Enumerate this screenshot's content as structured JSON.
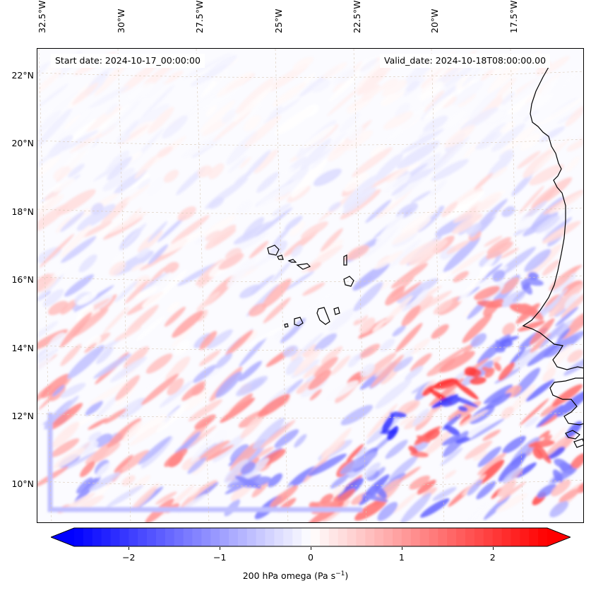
{
  "map": {
    "longitude_labels": [
      "32.5°W",
      "30°W",
      "27.5°W",
      "25°W",
      "22.5°W",
      "20°W",
      "17.5°W"
    ],
    "latitude_labels": [
      "22°N",
      "20°N",
      "18°N",
      "16°N",
      "14°N",
      "12°N",
      "10°N"
    ],
    "start_date_text": "Start date: 2024-10-17_00:00:00",
    "valid_date_text": "Valid_date: 2024-10-18T08:00:00.00",
    "field": "200 hPa omega",
    "colormap": "bwr",
    "colors": {
      "negative": "#0000ff",
      "zero": "#ffffff",
      "positive": "#ff0000",
      "coastline": "#000000",
      "gridlines": "#d9c9b8"
    }
  },
  "colorbar": {
    "ticks": [
      "−2",
      "−1",
      "0",
      "1",
      "2"
    ],
    "tick_values": [
      -2,
      -1,
      0,
      1,
      2
    ],
    "range": [
      -2.6,
      2.6
    ],
    "extend": "both",
    "label_prefix": "200 hPa omega (Pa s",
    "label_sup": "−1",
    "label_suffix": ")"
  }
}
